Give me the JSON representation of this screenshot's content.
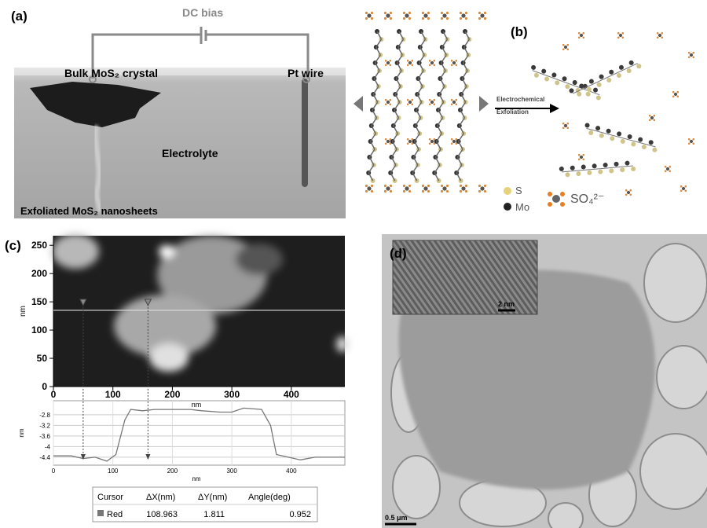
{
  "panel_a": {
    "label": "(a)",
    "bias": "DC bias",
    "crystal": "Bulk MoS₂ crystal",
    "wire": "Pt wire",
    "electrolyte": "Electrolyte",
    "nanosheets": "Exfoliated MoS₂ nanosheets"
  },
  "panel_b": {
    "label": "(b)",
    "arrow_label": [
      "Electrochemical",
      "Exfoliation"
    ],
    "legend": [
      "S",
      "Mo",
      "SO₄²⁻"
    ]
  },
  "panel_c": {
    "label": "(c)",
    "image": {
      "xlabel": "nm",
      "ylabel": "nm",
      "xlim": [
        0,
        490
      ],
      "ylim": [
        0,
        267
      ],
      "xticks": [
        0,
        100,
        200,
        300,
        400
      ],
      "yticks": [
        0,
        50,
        100,
        150,
        200,
        250
      ],
      "section_y": 135,
      "cursors": [
        50,
        159
      ]
    },
    "profile": {
      "xlabel": "nm",
      "ylabel": "nm",
      "xlim": [
        0,
        490
      ],
      "ylim": [
        -4.7,
        -2.27
      ],
      "xticks": [
        0,
        100,
        200,
        300,
        400
      ],
      "yticks": [
        -2.8,
        -3.2,
        -3.6,
        -4,
        -4.4
      ],
      "x": [
        0,
        30,
        50,
        70,
        90,
        105,
        120,
        130,
        150,
        170,
        230,
        250,
        280,
        300,
        320,
        350,
        365,
        375,
        395,
        415,
        440,
        490
      ],
      "y": [
        -4.35,
        -4.35,
        -4.45,
        -4.4,
        -4.55,
        -4.3,
        -3.0,
        -2.6,
        -2.65,
        -2.6,
        -2.6,
        -2.65,
        -2.7,
        -2.7,
        -2.55,
        -2.6,
        -3.2,
        -4.3,
        -4.4,
        -4.5,
        -4.4,
        -4.4
      ]
    },
    "table": {
      "columns": [
        "Cursor",
        "ΔX(nm)",
        "ΔY(nm)",
        "Angle(deg)"
      ],
      "rows": [
        [
          "Red",
          "108.963",
          "1.811",
          "0.952"
        ]
      ]
    }
  },
  "panel_d": {
    "label": "(d)",
    "inset_scale": "2 nm",
    "scale": "0.5 μm"
  }
}
